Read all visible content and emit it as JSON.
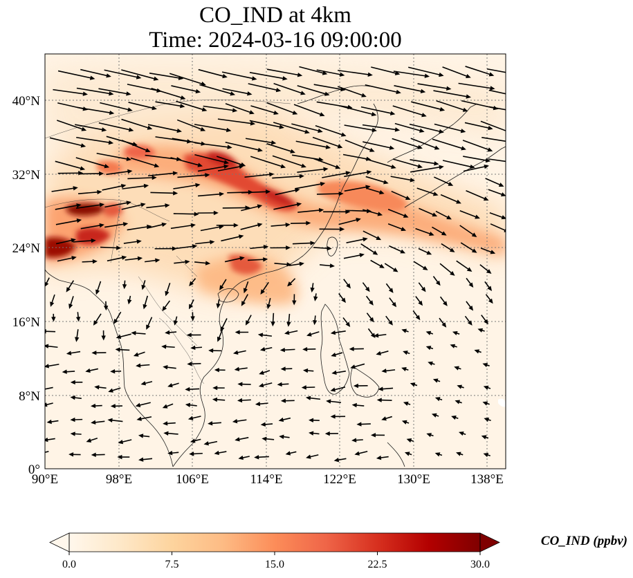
{
  "title_line1": "CO_IND at 4km",
  "title_line2": "Time: 2024-03-16 09:00:00",
  "axes": {
    "lon_range": [
      90,
      140
    ],
    "lat_range": [
      0,
      45
    ],
    "lon_ticks": [
      90,
      98,
      106,
      114,
      122,
      130,
      138
    ],
    "lon_tick_labels": [
      "90°E",
      "98°E",
      "106°E",
      "114°E",
      "122°E",
      "130°E",
      "138°E"
    ],
    "lat_ticks": [
      0,
      8,
      16,
      24,
      32,
      40
    ],
    "lat_tick_labels": [
      "0°",
      "8°N",
      "16°N",
      "24°N",
      "32°N",
      "40°N"
    ],
    "gridlines": "dotted"
  },
  "colorbar": {
    "label": "CO_IND (ppbv)",
    "min": 0,
    "max": 30,
    "ticks": [
      0,
      7.5,
      15,
      22.5,
      30
    ],
    "tick_labels": [
      "0.0",
      "7.5",
      "15.0",
      "22.5",
      "30.0"
    ],
    "extend": "both",
    "colormap": "OrRd",
    "colors": [
      "#fff7ec",
      "#fee8c8",
      "#fdd49e",
      "#fdbb84",
      "#fc8d59",
      "#ef6548",
      "#d7301f",
      "#b30000",
      "#7f0000"
    ]
  },
  "field": {
    "variable": "CO_IND",
    "units": "ppbv",
    "level": "4km",
    "plumes": [
      {
        "lon": 93.5,
        "lat": 28.0,
        "value": 30
      },
      {
        "lon": 92.5,
        "lat": 26.5,
        "value": 22
      },
      {
        "lon": 90.5,
        "lat": 23.8,
        "value": 28
      },
      {
        "lon": 95.0,
        "lat": 25.0,
        "value": 24
      },
      {
        "lon": 108.0,
        "lat": 34.0,
        "value": 20
      },
      {
        "lon": 111.0,
        "lat": 32.5,
        "value": 22
      },
      {
        "lon": 114.5,
        "lat": 30.5,
        "value": 24
      },
      {
        "lon": 116.5,
        "lat": 29.0,
        "value": 20
      },
      {
        "lon": 120.0,
        "lat": 29.5,
        "value": 14
      },
      {
        "lon": 125.0,
        "lat": 30.0,
        "value": 12
      },
      {
        "lon": 130.0,
        "lat": 28.0,
        "value": 10
      },
      {
        "lon": 102.0,
        "lat": 35.5,
        "value": 12
      },
      {
        "lon": 114.0,
        "lat": 22.0,
        "value": 16
      },
      {
        "lon": 111.0,
        "lat": 21.0,
        "value": 12
      },
      {
        "lon": 118.0,
        "lat": 19.0,
        "value": 8
      }
    ]
  },
  "wind": {
    "description": "wind vectors (quiver)",
    "regimes": [
      {
        "region": "north of 20N",
        "direction": "westerly to west-northwesterly",
        "relative_speed": "strong"
      },
      {
        "region": "south of 20N",
        "direction": "easterly to northeasterly",
        "relative_speed": "weak"
      }
    ]
  }
}
